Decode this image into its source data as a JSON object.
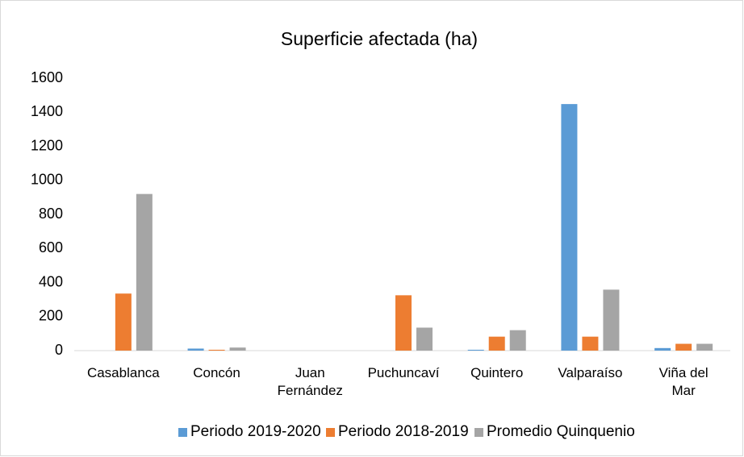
{
  "chart_data": {
    "type": "bar",
    "title": "Superficie afectada (ha)",
    "categories": [
      "Casablanca",
      "Concón",
      "Juan Fernández",
      "Puchuncaví",
      "Quintero",
      "Valparaíso",
      "Viña del Mar"
    ],
    "series": [
      {
        "name": "Periodo 2019-2020",
        "color": "#5b9bd5",
        "values": [
          0,
          12,
          0,
          0,
          5,
          1448,
          15
        ]
      },
      {
        "name": "Periodo 2018-2019",
        "color": "#ed7d31",
        "values": [
          335,
          5,
          0,
          325,
          82,
          82,
          40
        ]
      },
      {
        "name": "Promedio Quinquenio",
        "color": "#a5a5a5",
        "values": [
          920,
          18,
          0,
          135,
          120,
          358,
          40
        ]
      }
    ],
    "ylim": [
      0,
      1600
    ],
    "yticks": [
      0,
      200,
      400,
      600,
      800,
      1000,
      1200,
      1400,
      1600
    ],
    "grid": false,
    "legend": "bottom"
  }
}
